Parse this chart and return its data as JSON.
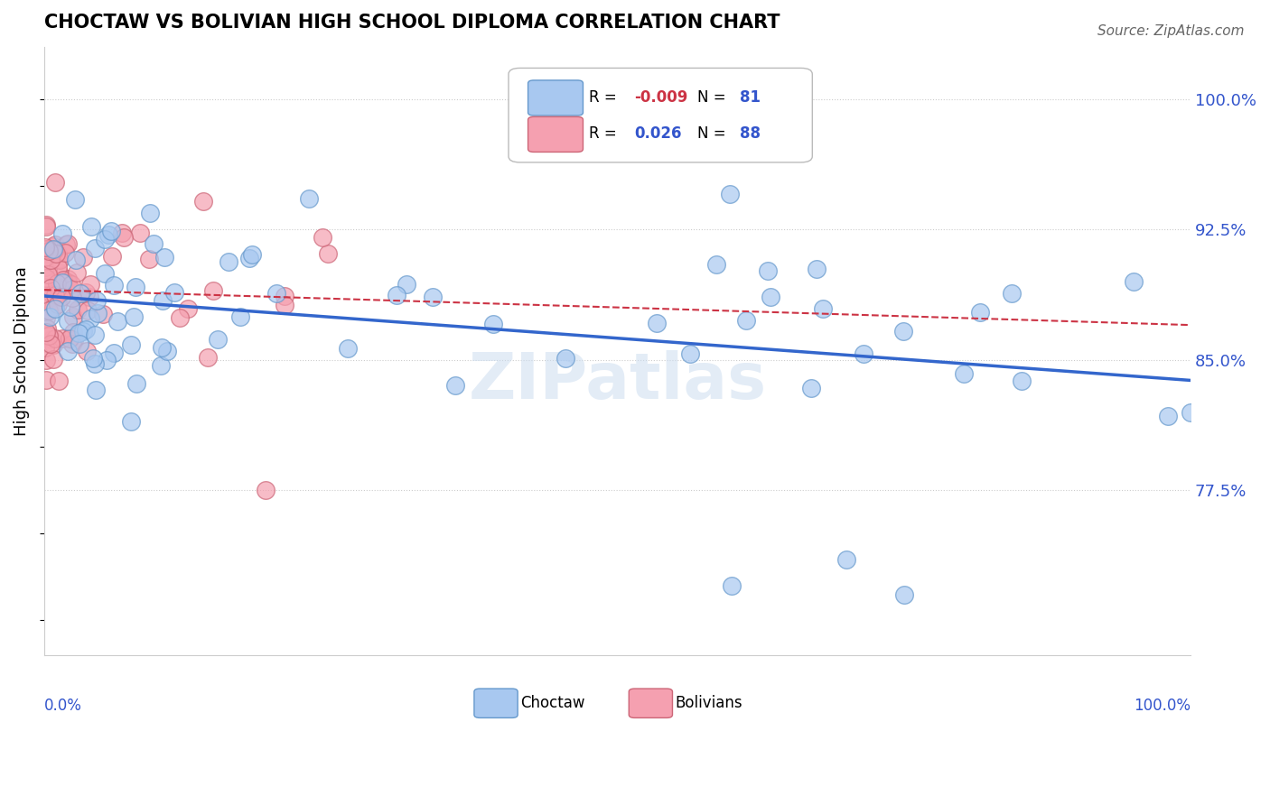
{
  "title": "CHOCTAW VS BOLIVIAN HIGH SCHOOL DIPLOMA CORRELATION CHART",
  "source": "Source: ZipAtlas.com",
  "ylabel": "High School Diploma",
  "xlim": [
    0.0,
    1.0
  ],
  "ylim": [
    0.68,
    1.03
  ],
  "choctaw_color": "#a8c8f0",
  "bolivian_color": "#f5a0b0",
  "choctaw_edge": "#6699cc",
  "bolivian_edge": "#cc6677",
  "trend_choctaw_color": "#3366cc",
  "trend_bolivian_color": "#cc3344",
  "R_choctaw": -0.009,
  "N_choctaw": 81,
  "R_bolivian": 0.026,
  "N_bolivian": 88
}
